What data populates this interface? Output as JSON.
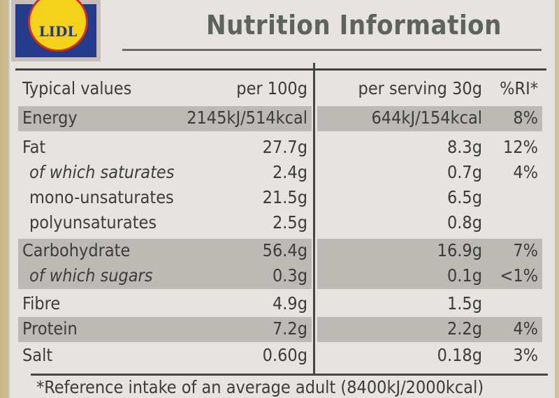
{
  "brand": {
    "logo_text": "LIDL"
  },
  "title": "Nutrition Information",
  "header": {
    "label": "Typical values",
    "per100": "per 100g",
    "serving": "per serving 30g",
    "ri": "%RI*"
  },
  "rows": [
    {
      "label": "Energy",
      "per100": "2145kJ/514kcal",
      "serving": "644kJ/154kcal",
      "ri": "8%"
    },
    {
      "label": "Fat",
      "per100": "27.7g",
      "serving": "8.3g",
      "ri": "12%"
    },
    {
      "label": "of which saturates",
      "per100": "2.4g",
      "serving": "0.7g",
      "ri": "4%"
    },
    {
      "label": "mono-unsaturates",
      "per100": "21.5g",
      "serving": "6.5g",
      "ri": ""
    },
    {
      "label": "polyunsaturates",
      "per100": "2.5g",
      "serving": "0.8g",
      "ri": ""
    },
    {
      "label": "Carbohydrate",
      "per100": "56.4g",
      "serving": "16.9g",
      "ri": "7%"
    },
    {
      "label": "of which sugars",
      "per100": "0.3g",
      "serving": "0.1g",
      "ri": "<1%"
    },
    {
      "label": "Fibre",
      "per100": "4.9g",
      "serving": "1.5g",
      "ri": ""
    },
    {
      "label": "Protein",
      "per100": "7.2g",
      "serving": "2.2g",
      "ri": "4%"
    },
    {
      "label": "Salt",
      "per100": "0.60g",
      "serving": "0.18g",
      "ri": "3%"
    }
  ],
  "footnote": "*Reference intake of an average adult (8400kJ/2000kcal)"
}
